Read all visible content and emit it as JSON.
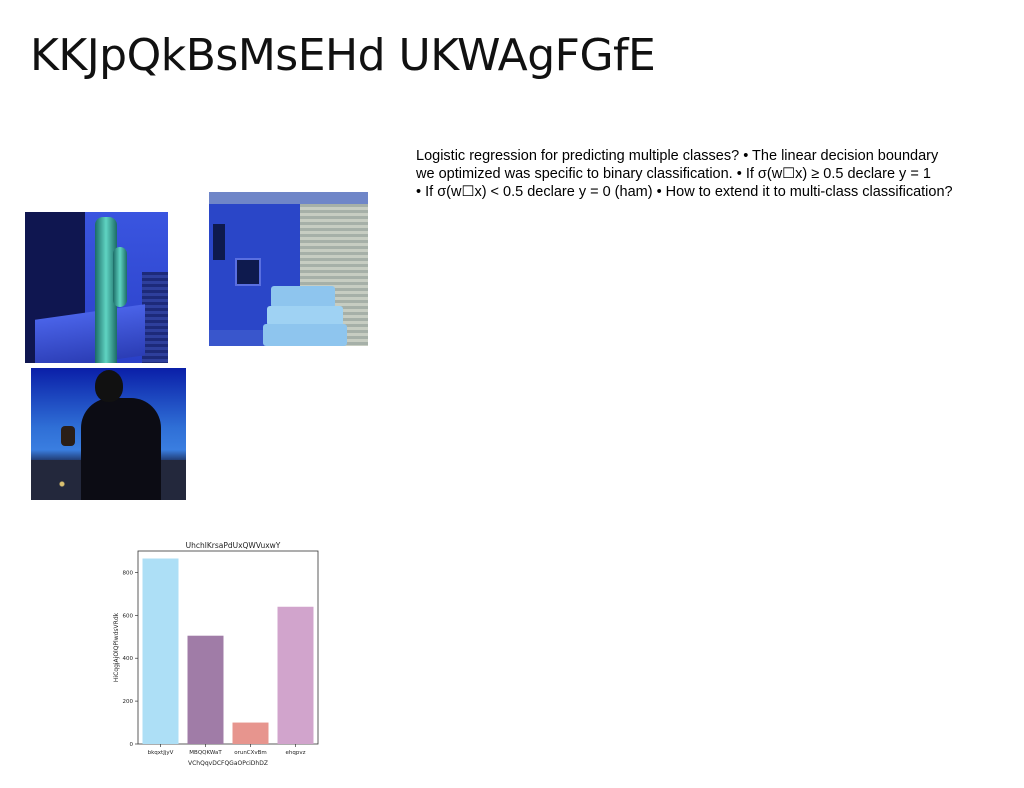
{
  "slide": {
    "title": "KKJpQkBsMsEHd UKWAgFGfE",
    "body_lines": [
      "Logistic regression for predicting multiple classes? • The linear decision boundary",
      "we optimized was specific to binary classification. • If σ(w☐x) ≥ 0.5 declare y = 1",
      "• If σ(w☐x) < 0.5 declare y = 0 (ham) • How to extend it to multi-class classification?"
    ]
  },
  "images": {
    "cactus": "dark-blue-cactus-scene",
    "wall": "blue-wall-stairs-scene",
    "person": "person-phone-night-city"
  },
  "chart_data": {
    "type": "bar",
    "title": "UhchlKrsaPdUxQWVuxwY",
    "xlabel": "VChQqvDCFQGaOPciDhDZ",
    "ylabel": "HiCqgjAjOlQPlwdsVRdk",
    "categories": [
      "bkqxtJjyV",
      "MBQQKWaT",
      "orunCXvBm",
      "ehqpvz"
    ],
    "values": [
      865,
      505,
      100,
      640
    ],
    "colors": [
      "#addff6",
      "#a07ca7",
      "#e7958e",
      "#d1a4cc"
    ],
    "ylim": [
      0,
      900
    ],
    "yticks": [
      0,
      200,
      400,
      600,
      800
    ],
    "grid": false
  }
}
